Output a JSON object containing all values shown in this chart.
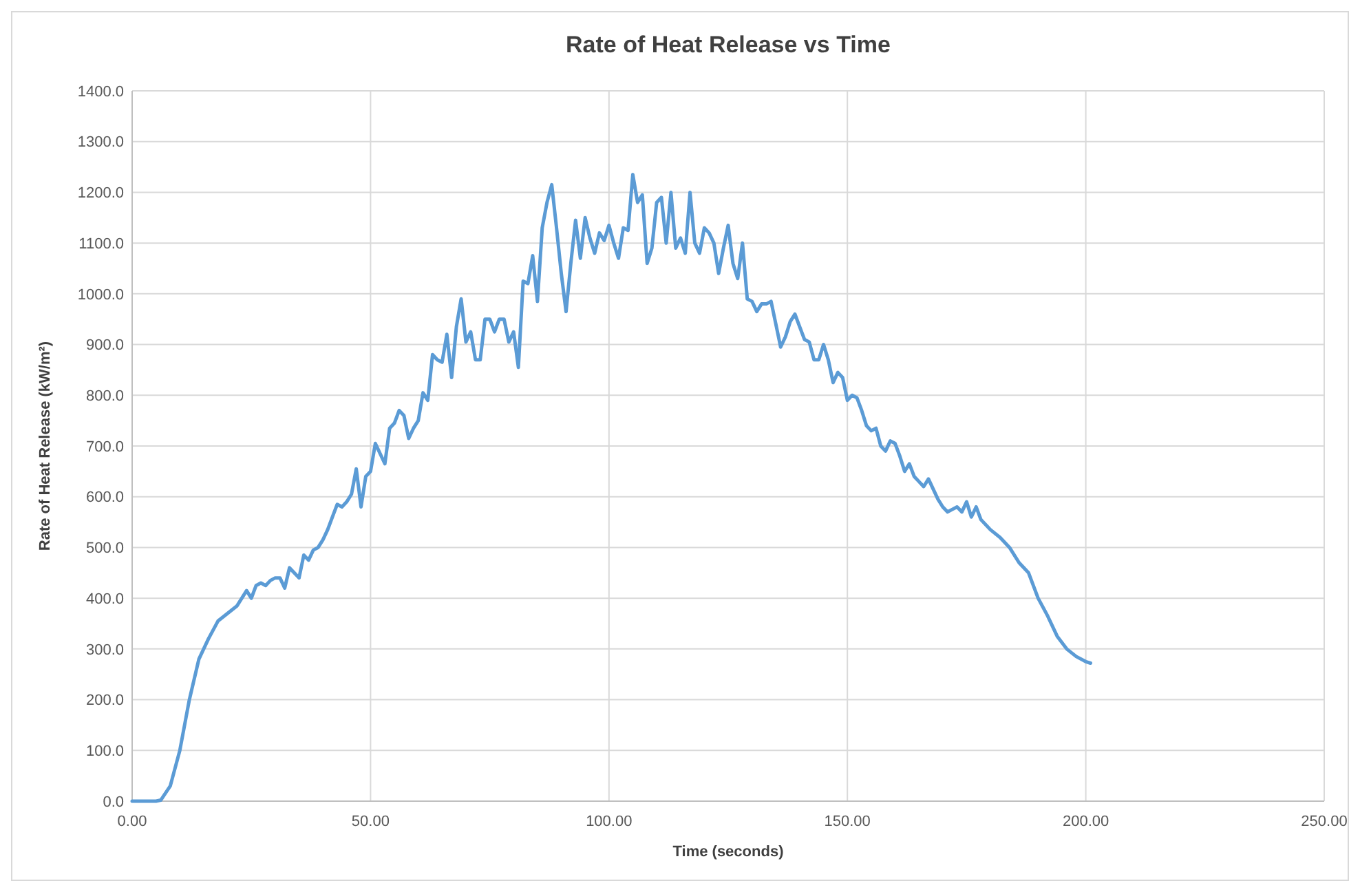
{
  "chart_data": {
    "type": "line",
    "title": "Rate of Heat Release vs Time",
    "xlabel": "Time (seconds)",
    "ylabel": "Rate of Heat Release (kW/m²)",
    "xlim": [
      0,
      250
    ],
    "ylim": [
      0,
      1400
    ],
    "xticks": [
      {
        "value": 0,
        "label": "0.00"
      },
      {
        "value": 50,
        "label": "50.00"
      },
      {
        "value": 100,
        "label": "100.00"
      },
      {
        "value": 150,
        "label": "150.00"
      },
      {
        "value": 200,
        "label": "200.00"
      },
      {
        "value": 250,
        "label": "250.00"
      }
    ],
    "yticks": [
      {
        "value": 0,
        "label": "0.0"
      },
      {
        "value": 100,
        "label": "100.0"
      },
      {
        "value": 200,
        "label": "200.0"
      },
      {
        "value": 300,
        "label": "300.0"
      },
      {
        "value": 400,
        "label": "400.0"
      },
      {
        "value": 500,
        "label": "500.0"
      },
      {
        "value": 600,
        "label": "600.0"
      },
      {
        "value": 700,
        "label": "700.0"
      },
      {
        "value": 800,
        "label": "800.0"
      },
      {
        "value": 900,
        "label": "900.0"
      },
      {
        "value": 1000,
        "label": "1000.0"
      },
      {
        "value": 1100,
        "label": "1100.0"
      },
      {
        "value": 1200,
        "label": "1200.0"
      },
      {
        "value": 1300,
        "label": "1300.0"
      },
      {
        "value": 1400,
        "label": "1400.0"
      }
    ],
    "grid": true,
    "marker": "none",
    "line_style": "solid",
    "series": [
      {
        "color": "#5b9bd5",
        "x": [
          0,
          5,
          6,
          8,
          10,
          12,
          14,
          16,
          18,
          20,
          22,
          24,
          25,
          26,
          27,
          28,
          29,
          30,
          31,
          32,
          33,
          34,
          35,
          36,
          37,
          38,
          39,
          40,
          41,
          42,
          43,
          44,
          45,
          46,
          47,
          48,
          49,
          50,
          51,
          52,
          53,
          54,
          55,
          56,
          57,
          58,
          59,
          60,
          61,
          62,
          63,
          64,
          65,
          66,
          67,
          68,
          69,
          70,
          71,
          72,
          73,
          74,
          75,
          76,
          77,
          78,
          79,
          80,
          81,
          82,
          83,
          84,
          85,
          86,
          87,
          88,
          89,
          90,
          91,
          92,
          93,
          94,
          95,
          96,
          97,
          98,
          99,
          100,
          101,
          102,
          103,
          104,
          105,
          106,
          107,
          108,
          109,
          110,
          111,
          112,
          113,
          114,
          115,
          116,
          117,
          118,
          119,
          120,
          121,
          122,
          123,
          124,
          125,
          126,
          127,
          128,
          129,
          130,
          131,
          132,
          133,
          134,
          135,
          136,
          137,
          138,
          139,
          140,
          141,
          142,
          143,
          144,
          145,
          146,
          147,
          148,
          149,
          150,
          151,
          152,
          153,
          154,
          155,
          156,
          157,
          158,
          159,
          160,
          161,
          162,
          163,
          164,
          165,
          166,
          167,
          168,
          169,
          170,
          171,
          172,
          173,
          174,
          175,
          176,
          177,
          178,
          180,
          182,
          184,
          186,
          188,
          190,
          192,
          194,
          196,
          198,
          200,
          201
        ],
        "values": [
          0,
          0,
          2,
          30,
          100,
          200,
          280,
          320,
          355,
          370,
          385,
          415,
          400,
          425,
          430,
          425,
          435,
          440,
          440,
          420,
          460,
          450,
          440,
          485,
          475,
          495,
          500,
          515,
          535,
          560,
          585,
          580,
          590,
          605,
          655,
          580,
          640,
          650,
          705,
          685,
          665,
          735,
          745,
          770,
          760,
          715,
          735,
          750,
          805,
          790,
          880,
          870,
          865,
          920,
          835,
          935,
          990,
          905,
          925,
          870,
          870,
          950,
          950,
          925,
          950,
          950,
          905,
          925,
          855,
          1025,
          1020,
          1075,
          985,
          1130,
          1180,
          1215,
          1130,
          1040,
          965,
          1060,
          1145,
          1070,
          1150,
          1110,
          1080,
          1120,
          1105,
          1135,
          1100,
          1070,
          1130,
          1125,
          1235,
          1180,
          1195,
          1060,
          1090,
          1180,
          1190,
          1100,
          1200,
          1090,
          1110,
          1080,
          1200,
          1100,
          1080,
          1130,
          1120,
          1100,
          1040,
          1090,
          1135,
          1060,
          1030,
          1100,
          990,
          985,
          965,
          980,
          980,
          985,
          940,
          895,
          915,
          945,
          960,
          935,
          910,
          905,
          870,
          870,
          900,
          870,
          825,
          845,
          835,
          790,
          800,
          795,
          770,
          740,
          730,
          735,
          700,
          690,
          710,
          705,
          680,
          650,
          665,
          640,
          630,
          620,
          635,
          615,
          595,
          580,
          570,
          575,
          580,
          570,
          590,
          560,
          580,
          555,
          535,
          520,
          500,
          470,
          450,
          400,
          365,
          325,
          300,
          285,
          275,
          272
        ]
      }
    ]
  }
}
